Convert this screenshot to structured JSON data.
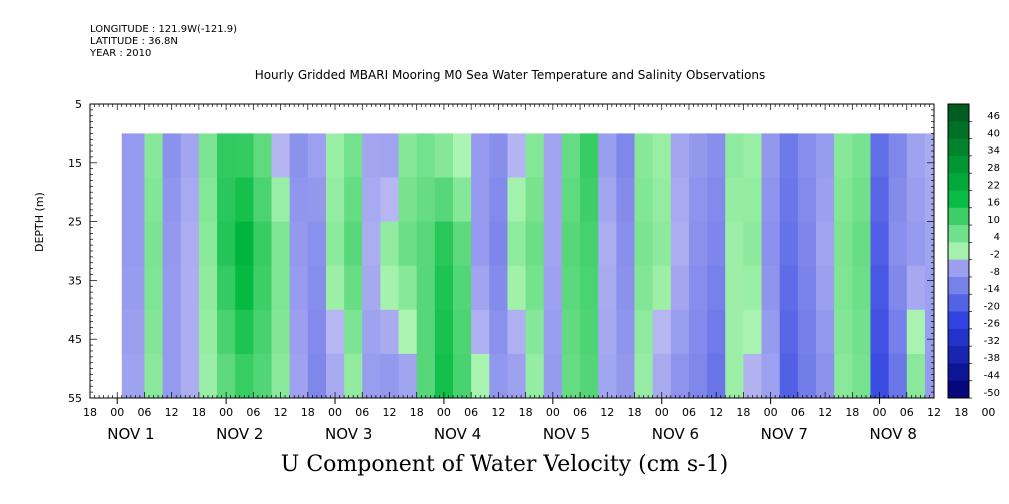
{
  "header": {
    "longitude": "LONGITUDE : 121.9W(-121.9)",
    "latitude": "LATITUDE : 36.8N",
    "year": "YEAR : 2010"
  },
  "chart_data": {
    "type": "heatmap",
    "title": "Hourly Gridded MBARI Mooring M0 Sea Water Temperature and Salinity Observations",
    "xlabel": "U Component of Water Velocity (cm s-1)",
    "ylabel": "DEPTH (m)",
    "y_ticks": [
      5,
      15,
      25,
      35,
      45,
      55
    ],
    "ylim": [
      55,
      5
    ],
    "hour_ticks": [
      "18",
      "00",
      "06",
      "12",
      "18",
      "00",
      "06",
      "12",
      "18",
      "00",
      "06",
      "12",
      "18",
      "00",
      "06",
      "12",
      "18",
      "00",
      "06",
      "12",
      "18",
      "00",
      "06",
      "12",
      "18",
      "00",
      "06",
      "12",
      "18",
      "00",
      "06",
      "12",
      "18",
      "00",
      "06",
      "12",
      "18"
    ],
    "day_labels": [
      "NOV 1",
      "NOV 2",
      "NOV 3",
      "NOV 4",
      "NOV 5",
      "NOV 6",
      "NOV 7",
      "NOV 8"
    ],
    "xlim_hours": [
      -6,
      180
    ],
    "data_start_hour": 1,
    "data_end_hour": 178,
    "data_top_depth": 10,
    "colorbar_labels": [
      "46",
      "40",
      "34",
      "28",
      "22",
      "16",
      "10",
      "4",
      "-2",
      "-8",
      "-14",
      "-20",
      "-26",
      "-32",
      "-38",
      "-44",
      "-50"
    ],
    "colorbar_range": [
      -50,
      52
    ],
    "colormap": {
      "positive_light": "#aef5b4",
      "positive_strong": "#00b93f",
      "positive_max": "#005a20",
      "negative_light": "#b8b8f2",
      "negative_strong": "#2b3fe0",
      "negative_max": "#00006e"
    },
    "profiles": [
      {
        "hour": 1,
        "v": [
          -6,
          -6,
          -4
        ]
      },
      {
        "hour": 6,
        "v": [
          4,
          6,
          4
        ]
      },
      {
        "hour": 10,
        "v": [
          -8,
          -6,
          -6
        ]
      },
      {
        "hour": 14,
        "v": [
          -4,
          -2,
          -2
        ]
      },
      {
        "hour": 18,
        "v": [
          6,
          4,
          2
        ]
      },
      {
        "hour": 22,
        "v": [
          14,
          16,
          8
        ]
      },
      {
        "hour": 26,
        "v": [
          12,
          22,
          12
        ]
      },
      {
        "hour": 30,
        "v": [
          8,
          14,
          10
        ]
      },
      {
        "hour": 34,
        "v": [
          -2,
          6,
          4
        ]
      },
      {
        "hour": 38,
        "v": [
          -8,
          -6,
          -4
        ]
      },
      {
        "hour": 42,
        "v": [
          -4,
          -8,
          -10
        ]
      },
      {
        "hour": 46,
        "v": [
          2,
          4,
          -4
        ]
      },
      {
        "hour": 50,
        "v": [
          6,
          10,
          2
        ]
      },
      {
        "hour": 54,
        "v": [
          -4,
          -2,
          -6
        ]
      },
      {
        "hour": 58,
        "v": [
          -6,
          4,
          -8
        ]
      },
      {
        "hour": 62,
        "v": [
          4,
          8,
          -6
        ]
      },
      {
        "hour": 66,
        "v": [
          6,
          10,
          10
        ]
      },
      {
        "hour": 70,
        "v": [
          2,
          16,
          18
        ]
      },
      {
        "hour": 74,
        "v": [
          -2,
          10,
          12
        ]
      },
      {
        "hour": 78,
        "v": [
          -6,
          -6,
          2
        ]
      },
      {
        "hour": 82,
        "v": [
          -8,
          -10,
          -6
        ]
      },
      {
        "hour": 86,
        "v": [
          -2,
          4,
          -6
        ]
      },
      {
        "hour": 90,
        "v": [
          4,
          8,
          2
        ]
      },
      {
        "hour": 94,
        "v": [
          -4,
          -4,
          -6
        ]
      },
      {
        "hour": 98,
        "v": [
          8,
          10,
          8
        ]
      },
      {
        "hour": 102,
        "v": [
          14,
          12,
          10
        ]
      },
      {
        "hour": 106,
        "v": [
          -6,
          -2,
          -4
        ]
      },
      {
        "hour": 110,
        "v": [
          -10,
          -8,
          -6
        ]
      },
      {
        "hour": 114,
        "v": [
          4,
          6,
          2
        ]
      },
      {
        "hour": 118,
        "v": [
          2,
          4,
          -4
        ]
      },
      {
        "hour": 122,
        "v": [
          -4,
          -2,
          -8
        ]
      },
      {
        "hour": 126,
        "v": [
          -6,
          -8,
          -10
        ]
      },
      {
        "hour": 130,
        "v": [
          -8,
          -10,
          -14
        ]
      },
      {
        "hour": 134,
        "v": [
          4,
          2,
          2
        ]
      },
      {
        "hour": 138,
        "v": [
          2,
          4,
          -2
        ]
      },
      {
        "hour": 142,
        "v": [
          -6,
          -8,
          -4
        ]
      },
      {
        "hour": 146,
        "v": [
          -12,
          -14,
          -18
        ]
      },
      {
        "hour": 150,
        "v": [
          -8,
          -10,
          -12
        ]
      },
      {
        "hour": 154,
        "v": [
          -6,
          -4,
          -8
        ]
      },
      {
        "hour": 158,
        "v": [
          4,
          6,
          4
        ]
      },
      {
        "hour": 162,
        "v": [
          6,
          8,
          6
        ]
      },
      {
        "hour": 166,
        "v": [
          -14,
          -18,
          -22
        ]
      },
      {
        "hour": 170,
        "v": [
          -10,
          -8,
          -14
        ]
      },
      {
        "hour": 174,
        "v": [
          -4,
          -6,
          6
        ]
      },
      {
        "hour": 178,
        "v": [
          -2,
          -4,
          -6
        ]
      }
    ],
    "profile_depths": [
      10,
      30,
      55
    ]
  }
}
